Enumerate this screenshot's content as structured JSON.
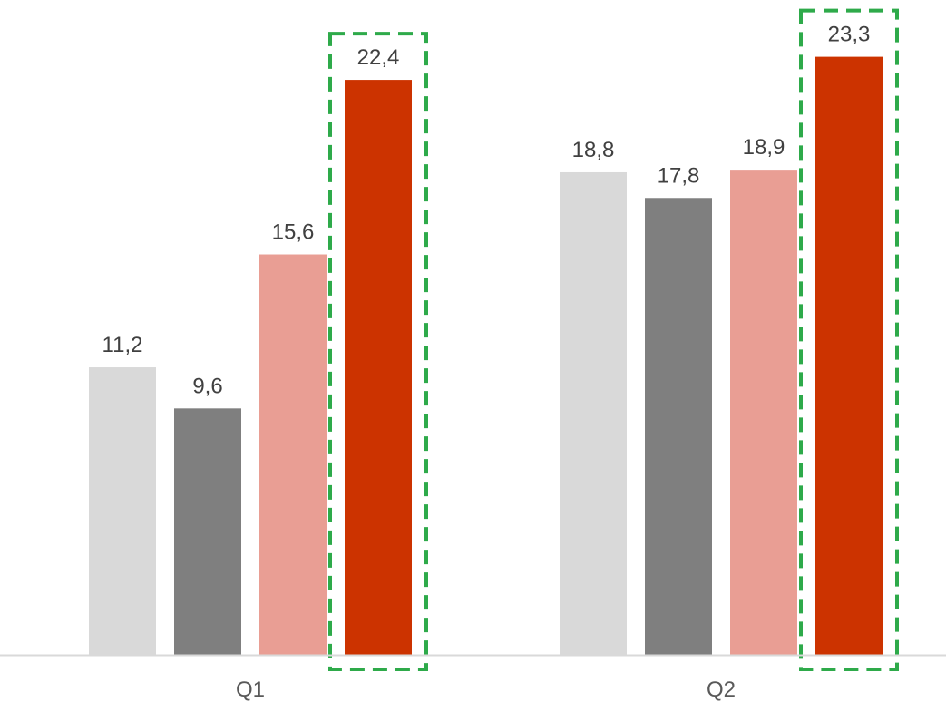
{
  "chart_data": {
    "type": "bar",
    "categories": [
      "Q1",
      "Q2"
    ],
    "series": [
      {
        "values": [
          11.2,
          18.8
        ],
        "labels": [
          "11,2",
          "18,8"
        ],
        "color": "#d9d9d9"
      },
      {
        "values": [
          9.6,
          17.8
        ],
        "labels": [
          "9,6",
          "17,8"
        ],
        "color": "#7f7f7f"
      },
      {
        "values": [
          15.6,
          18.9
        ],
        "labels": [
          "15,6",
          "18,9"
        ],
        "color": "#e99e94"
      },
      {
        "values": [
          22.4,
          23.3
        ],
        "labels": [
          "22,4",
          "23,3"
        ],
        "color": "#cc3300",
        "highlighted": true
      }
    ],
    "highlight_color": "#2eaa4a",
    "axis_color": "#d9d9d9",
    "title": "",
    "xlabel": "",
    "ylabel": "",
    "ylim": [
      0,
      25
    ],
    "grid": false,
    "legend": "none"
  }
}
